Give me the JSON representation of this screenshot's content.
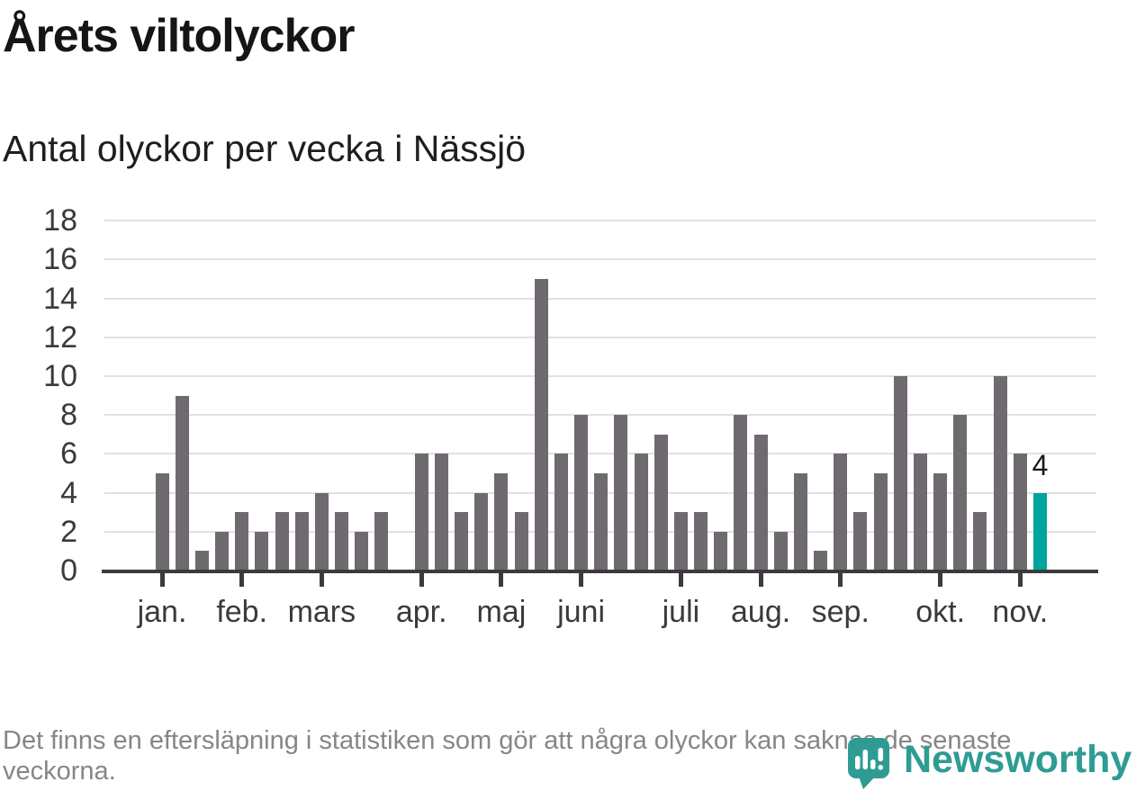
{
  "title": "Årets viltolyckor",
  "subtitle": "Antal olyckor per vecka i Nässjö",
  "footer_note": "Det finns en eftersläpning i statistiken som gör att några olyckor kan saknas de senaste veckorna.",
  "logo": {
    "text": "Newsworthy"
  },
  "colors": {
    "bar": "#6E6A6F",
    "highlight": "#00A49C",
    "axis": "#3B3B3C",
    "grid": "#E1E1E1",
    "logo": "#2F9C93",
    "axis_label": "#3A3A3A",
    "value_label": "#1A1A1A"
  },
  "chart_data": {
    "type": "bar",
    "title": "Årets viltolyckor",
    "subtitle": "Antal olyckor per vecka i Nässjö",
    "x_unit": "vecka",
    "categories": [
      1,
      2,
      3,
      4,
      5,
      6,
      7,
      8,
      9,
      10,
      11,
      12,
      13,
      14,
      15,
      16,
      17,
      18,
      19,
      20,
      21,
      22,
      23,
      24,
      25,
      26,
      27,
      28,
      29,
      30,
      31,
      32,
      33,
      34,
      35,
      36,
      37,
      38,
      39,
      40,
      41,
      42,
      43,
      44,
      45
    ],
    "values": [
      5,
      9,
      1,
      2,
      3,
      2,
      3,
      3,
      4,
      3,
      2,
      3,
      0,
      6,
      6,
      3,
      4,
      5,
      3,
      15,
      6,
      8,
      5,
      8,
      6,
      7,
      3,
      3,
      2,
      8,
      7,
      2,
      5,
      1,
      6,
      3,
      5,
      10,
      6,
      5,
      8,
      3,
      10,
      6,
      4
    ],
    "ylim": [
      0,
      18
    ],
    "y_ticks": [
      0,
      2,
      4,
      6,
      8,
      10,
      12,
      14,
      16,
      18
    ],
    "x_ticks": [
      {
        "week": 1,
        "label": "jan."
      },
      {
        "week": 5,
        "label": "feb."
      },
      {
        "week": 9,
        "label": "mars"
      },
      {
        "week": 14,
        "label": "apr."
      },
      {
        "week": 18,
        "label": "maj"
      },
      {
        "week": 22,
        "label": "juni"
      },
      {
        "week": 27,
        "label": "juli"
      },
      {
        "week": 31,
        "label": "aug."
      },
      {
        "week": 35,
        "label": "sep."
      },
      {
        "week": 40,
        "label": "okt."
      },
      {
        "week": 44,
        "label": "nov."
      }
    ],
    "grid": true,
    "legend": "none",
    "highlight_last_bar": true,
    "last_bar_label": "4"
  }
}
